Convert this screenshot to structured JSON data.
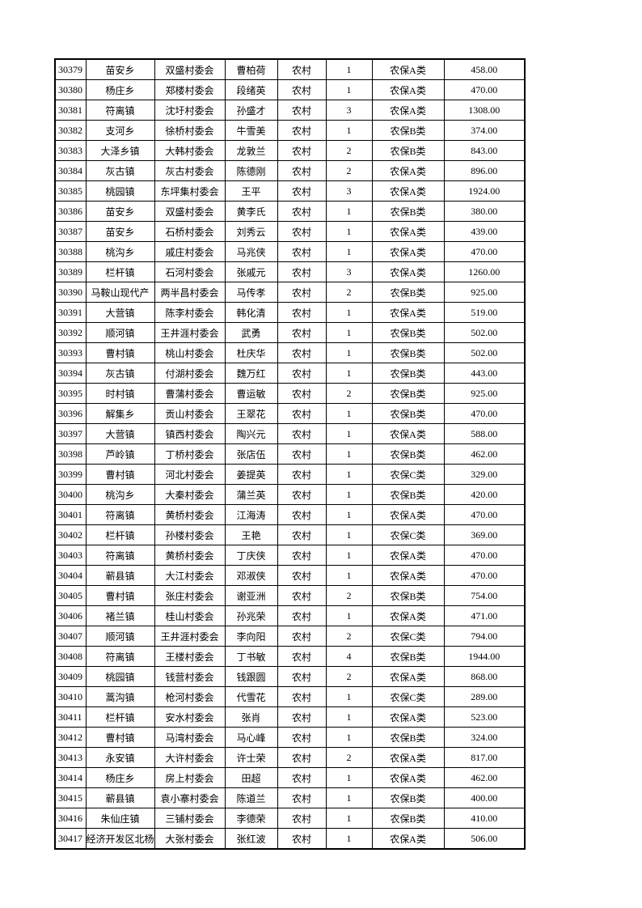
{
  "table": {
    "rows": [
      [
        "30379",
        "苗安乡",
        "双盛村委会",
        "曹柏荷",
        "农村",
        "1",
        "农保A类",
        "458.00"
      ],
      [
        "30380",
        "杨庄乡",
        "郑楼村委会",
        "段绪英",
        "农村",
        "1",
        "农保A类",
        "470.00"
      ],
      [
        "30381",
        "符离镇",
        "沈圩村委会",
        "孙盛才",
        "农村",
        "3",
        "农保A类",
        "1308.00"
      ],
      [
        "30382",
        "支河乡",
        "徐桥村委会",
        "牛雪美",
        "农村",
        "1",
        "农保B类",
        "374.00"
      ],
      [
        "30383",
        "大泽乡镇",
        "大韩村委会",
        "龙敦兰",
        "农村",
        "2",
        "农保B类",
        "843.00"
      ],
      [
        "30384",
        "灰古镇",
        "灰古村委会",
        "陈德刚",
        "农村",
        "2",
        "农保A类",
        "896.00"
      ],
      [
        "30385",
        "桃园镇",
        "东坪集村委会",
        "王平",
        "农村",
        "3",
        "农保A类",
        "1924.00"
      ],
      [
        "30386",
        "苗安乡",
        "双盛村委会",
        "黄李氏",
        "农村",
        "1",
        "农保B类",
        "380.00"
      ],
      [
        "30387",
        "苗安乡",
        "石桥村委会",
        "刘秀云",
        "农村",
        "1",
        "农保A类",
        "439.00"
      ],
      [
        "30388",
        "桃沟乡",
        "戚庄村委会",
        "马兆侠",
        "农村",
        "1",
        "农保A类",
        "470.00"
      ],
      [
        "30389",
        "栏杆镇",
        "石河村委会",
        "张戚元",
        "农村",
        "3",
        "农保A类",
        "1260.00"
      ],
      [
        "30390",
        "马鞍山现代产",
        "两半昌村委会",
        "马传孝",
        "农村",
        "2",
        "农保B类",
        "925.00"
      ],
      [
        "30391",
        "大营镇",
        "陈李村委会",
        "韩化清",
        "农村",
        "1",
        "农保A类",
        "519.00"
      ],
      [
        "30392",
        "顺河镇",
        "王井涯村委会",
        "武勇",
        "农村",
        "1",
        "农保B类",
        "502.00"
      ],
      [
        "30393",
        "曹村镇",
        "桃山村委会",
        "杜庆华",
        "农村",
        "1",
        "农保B类",
        "502.00"
      ],
      [
        "30394",
        "灰古镇",
        "付湖村委会",
        "魏万红",
        "农村",
        "1",
        "农保B类",
        "443.00"
      ],
      [
        "30395",
        "时村镇",
        "曹蒲村委会",
        "曹运敏",
        "农村",
        "2",
        "农保B类",
        "925.00"
      ],
      [
        "30396",
        "解集乡",
        "贡山村委会",
        "王翠花",
        "农村",
        "1",
        "农保B类",
        "470.00"
      ],
      [
        "30397",
        "大营镇",
        "镇西村委会",
        "陶兴元",
        "农村",
        "1",
        "农保A类",
        "588.00"
      ],
      [
        "30398",
        "芦岭镇",
        "丁桥村委会",
        "张店伍",
        "农村",
        "1",
        "农保B类",
        "462.00"
      ],
      [
        "30399",
        "曹村镇",
        "河北村委会",
        "姜提英",
        "农村",
        "1",
        "农保C类",
        "329.00"
      ],
      [
        "30400",
        "桃沟乡",
        "大秦村委会",
        "蒲兰英",
        "农村",
        "1",
        "农保B类",
        "420.00"
      ],
      [
        "30401",
        "符离镇",
        "黄桥村委会",
        "江海涛",
        "农村",
        "1",
        "农保A类",
        "470.00"
      ],
      [
        "30402",
        "栏杆镇",
        "孙楼村委会",
        "王艳",
        "农村",
        "1",
        "农保C类",
        "369.00"
      ],
      [
        "30403",
        "符离镇",
        "黄桥村委会",
        "丁庆侠",
        "农村",
        "1",
        "农保A类",
        "470.00"
      ],
      [
        "30404",
        "蕲县镇",
        "大江村委会",
        "邓淑侠",
        "农村",
        "1",
        "农保A类",
        "470.00"
      ],
      [
        "30405",
        "曹村镇",
        "张庄村委会",
        "谢亚洲",
        "农村",
        "2",
        "农保B类",
        "754.00"
      ],
      [
        "30406",
        "褚兰镇",
        "桂山村委会",
        "孙兆荣",
        "农村",
        "1",
        "农保A类",
        "471.00"
      ],
      [
        "30407",
        "顺河镇",
        "王井涯村委会",
        "李向阳",
        "农村",
        "2",
        "农保C类",
        "794.00"
      ],
      [
        "30408",
        "符离镇",
        "王楼村委会",
        "丁书敏",
        "农村",
        "4",
        "农保B类",
        "1944.00"
      ],
      [
        "30409",
        "桃园镇",
        "钱营村委会",
        "钱跟圆",
        "农村",
        "2",
        "农保A类",
        "868.00"
      ],
      [
        "30410",
        "蒿沟镇",
        "枪河村委会",
        "代雪花",
        "农村",
        "1",
        "农保C类",
        "289.00"
      ],
      [
        "30411",
        "栏杆镇",
        "安水村委会",
        "张肖",
        "农村",
        "1",
        "农保A类",
        "523.00"
      ],
      [
        "30412",
        "曹村镇",
        "马湾村委会",
        "马心峰",
        "农村",
        "1",
        "农保B类",
        "324.00"
      ],
      [
        "30413",
        "永安镇",
        "大许村委会",
        "许士荣",
        "农村",
        "2",
        "农保A类",
        "817.00"
      ],
      [
        "30414",
        "杨庄乡",
        "房上村委会",
        "田超",
        "农村",
        "1",
        "农保A类",
        "462.00"
      ],
      [
        "30415",
        "蕲县镇",
        "袁小寨村委会",
        "陈道兰",
        "农村",
        "1",
        "农保B类",
        "400.00"
      ],
      [
        "30416",
        "朱仙庄镇",
        "三铺村委会",
        "李德荣",
        "农村",
        "1",
        "农保B类",
        "410.00"
      ],
      [
        "30417",
        "经济开发区北杨",
        "大张村委会",
        "张红波",
        "农村",
        "1",
        "农保A类",
        "506.00"
      ]
    ]
  }
}
